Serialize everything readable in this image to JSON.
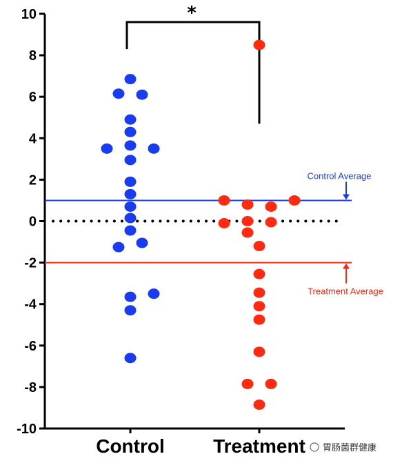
{
  "chart_data": {
    "type": "scatter",
    "categories": [
      "Control",
      "Treatment"
    ],
    "ylim": [
      -10,
      10
    ],
    "yticks": [
      10,
      8,
      6,
      4,
      2,
      0,
      -2,
      -4,
      -6,
      -8,
      -10
    ],
    "grid": false,
    "series": [
      {
        "name": "Control",
        "color": "#1a3cf0",
        "points": [
          {
            "value": 6.85,
            "slot": 0
          },
          {
            "value": 6.15,
            "slot": -1
          },
          {
            "value": 6.1,
            "slot": 1
          },
          {
            "value": 4.9,
            "slot": 0
          },
          {
            "value": 4.3,
            "slot": 0
          },
          {
            "value": 3.65,
            "slot": 0
          },
          {
            "value": 3.5,
            "slot": -2
          },
          {
            "value": 3.5,
            "slot": 2
          },
          {
            "value": 2.95,
            "slot": 0
          },
          {
            "value": 1.9,
            "slot": 0
          },
          {
            "value": 1.3,
            "slot": 0
          },
          {
            "value": 0.7,
            "slot": 0
          },
          {
            "value": 0.15,
            "slot": 0
          },
          {
            "value": -0.45,
            "slot": 0
          },
          {
            "value": -1.05,
            "slot": 1
          },
          {
            "value": -1.25,
            "slot": -1
          },
          {
            "value": -3.5,
            "slot": 2
          },
          {
            "value": -3.65,
            "slot": 0
          },
          {
            "value": -4.3,
            "slot": 0
          },
          {
            "value": -6.6,
            "slot": 0
          }
        ]
      },
      {
        "name": "Treatment",
        "color": "#ff2a10",
        "points": [
          {
            "value": 8.5,
            "slot": 0
          },
          {
            "value": 1.0,
            "slot": -3
          },
          {
            "value": 1.0,
            "slot": 3
          },
          {
            "value": 0.8,
            "slot": -1
          },
          {
            "value": 0.7,
            "slot": 1
          },
          {
            "value": -0.1,
            "slot": -3
          },
          {
            "value": 0.0,
            "slot": -1
          },
          {
            "value": -0.05,
            "slot": 1
          },
          {
            "value": -0.55,
            "slot": -1
          },
          {
            "value": -1.2,
            "slot": 0
          },
          {
            "value": -2.55,
            "slot": 0
          },
          {
            "value": -3.45,
            "slot": 0
          },
          {
            "value": -4.1,
            "slot": 0
          },
          {
            "value": -4.75,
            "slot": 0
          },
          {
            "value": -6.3,
            "slot": 0
          },
          {
            "value": -7.85,
            "slot": -1
          },
          {
            "value": -7.85,
            "slot": 1
          },
          {
            "value": -8.85,
            "slot": 0
          }
        ]
      }
    ],
    "reference_lines": [
      {
        "label": "Control Average",
        "value": 1.0,
        "color": "#1a3cf0"
      },
      {
        "label": "Treatment Average",
        "value": -2.0,
        "color": "#ff2a10"
      },
      {
        "value": 0,
        "color": "#000000",
        "style": "dotted"
      }
    ],
    "significance": {
      "label": "*",
      "from": "Control",
      "to": "Treatment"
    }
  },
  "watermark": {
    "text": "胃肠菌群健康"
  }
}
